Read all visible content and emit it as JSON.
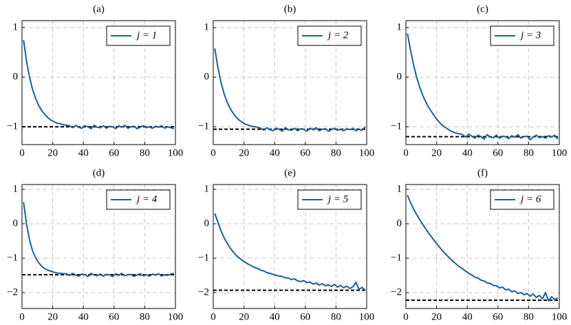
{
  "chart_data": [
    {
      "type": "line",
      "title": "(a)",
      "x": [
        1,
        3,
        5,
        7,
        9,
        11,
        13,
        15,
        17,
        19,
        21,
        23,
        25,
        27,
        29,
        31,
        33,
        35,
        37,
        39,
        41,
        43,
        45,
        47,
        49,
        51,
        53,
        55,
        57,
        59,
        61,
        63,
        65,
        67,
        69,
        71,
        73,
        75,
        77,
        79,
        81,
        83,
        85,
        87,
        89,
        91,
        93,
        95,
        97,
        99
      ],
      "series": [
        {
          "name": "j = 1",
          "color": "#1a5e9a",
          "values": [
            0.75,
            0.31,
            -0.01,
            -0.26,
            -0.44,
            -0.58,
            -0.68,
            -0.76,
            -0.82,
            -0.87,
            -0.9,
            -0.93,
            -0.94,
            -0.96,
            -0.97,
            -0.98,
            -1.02,
            -0.97,
            -1.01,
            -1.03,
            -0.98,
            -1.0,
            -1.04,
            -0.97,
            -1.01,
            -1.02,
            -0.98,
            -1.03,
            -0.99,
            -1.0,
            -1.04,
            -0.98,
            -1.01,
            -0.97,
            -1.03,
            -1.0,
            -0.99,
            -1.04,
            -1.01,
            -0.98,
            -1.02,
            -1.0,
            -1.03,
            -0.99,
            -1.01,
            -0.98,
            -1.03,
            -1.0,
            -1.02,
            -1.04
          ]
        }
      ],
      "hline": -1.0,
      "xlim": [
        0,
        100
      ],
      "ylim": [
        -1.36,
        1.14
      ],
      "xticks": [
        0,
        20,
        40,
        60,
        80,
        100
      ],
      "yticks": [
        {
          "value": -1,
          "label": "−1"
        },
        0,
        1
      ],
      "grid": true,
      "legend": "upper right"
    },
    {
      "type": "line",
      "title": "(b)",
      "x": [
        1,
        3,
        5,
        7,
        9,
        11,
        13,
        15,
        17,
        19,
        21,
        23,
        25,
        27,
        29,
        31,
        33,
        35,
        37,
        39,
        41,
        43,
        45,
        47,
        49,
        51,
        53,
        55,
        57,
        59,
        61,
        63,
        65,
        67,
        69,
        71,
        73,
        75,
        77,
        79,
        81,
        83,
        85,
        87,
        89,
        91,
        93,
        95,
        97,
        99
      ],
      "series": [
        {
          "name": "j = 2",
          "color": "#1a5e9a",
          "values": [
            0.58,
            0.2,
            -0.1,
            -0.33,
            -0.5,
            -0.63,
            -0.73,
            -0.81,
            -0.87,
            -0.91,
            -0.95,
            -0.97,
            -0.99,
            -1.0,
            -1.01,
            -1.03,
            -1.07,
            -1.02,
            -1.06,
            -1.08,
            -1.03,
            -1.05,
            -1.09,
            -1.02,
            -1.06,
            -1.07,
            -1.03,
            -1.08,
            -1.04,
            -1.05,
            -1.09,
            -1.03,
            -1.06,
            -1.02,
            -1.08,
            -1.05,
            -1.04,
            -1.09,
            -1.06,
            -1.03,
            -1.07,
            -1.05,
            -1.08,
            -1.04,
            -1.06,
            -1.03,
            -1.08,
            -1.05,
            -1.07,
            -1.0
          ]
        }
      ],
      "hline": -1.05,
      "xlim": [
        0,
        100
      ],
      "ylim": [
        -1.36,
        1.14
      ],
      "xticks": [
        0,
        20,
        40,
        60,
        80,
        100
      ],
      "yticks": [
        {
          "value": -1,
          "label": "−1"
        },
        0,
        1
      ],
      "grid": true,
      "legend": "upper right"
    },
    {
      "type": "line",
      "title": "(c)",
      "x": [
        1,
        3,
        5,
        7,
        9,
        11,
        13,
        15,
        17,
        19,
        21,
        23,
        25,
        27,
        29,
        31,
        33,
        35,
        37,
        39,
        41,
        43,
        45,
        47,
        49,
        51,
        53,
        55,
        57,
        59,
        61,
        63,
        65,
        67,
        69,
        71,
        73,
        75,
        77,
        79,
        81,
        83,
        85,
        87,
        89,
        91,
        93,
        95,
        97,
        99
      ],
      "series": [
        {
          "name": "j = 3",
          "color": "#1a5e9a",
          "values": [
            0.88,
            0.55,
            0.25,
            0.0,
            -0.2,
            -0.37,
            -0.5,
            -0.62,
            -0.71,
            -0.8,
            -0.88,
            -0.95,
            -1.0,
            -1.04,
            -1.08,
            -1.11,
            -1.13,
            -1.14,
            -1.16,
            -1.21,
            -1.15,
            -1.19,
            -1.23,
            -1.17,
            -1.2,
            -1.25,
            -1.16,
            -1.21,
            -1.22,
            -1.17,
            -1.23,
            -1.19,
            -1.2,
            -1.24,
            -1.18,
            -1.21,
            -1.16,
            -1.23,
            -1.2,
            -1.19,
            -1.26,
            -1.21,
            -1.17,
            -1.22,
            -1.2,
            -1.23,
            -1.18,
            -1.21,
            -1.17,
            -1.25
          ]
        }
      ],
      "hline": -1.2,
      "xlim": [
        0,
        100
      ],
      "ylim": [
        -1.36,
        1.14
      ],
      "xticks": [
        0,
        20,
        40,
        60,
        80,
        100
      ],
      "yticks": [
        {
          "value": -1,
          "label": "−1"
        },
        0,
        1
      ],
      "grid": true,
      "legend": "upper right"
    },
    {
      "type": "line",
      "title": "(d)",
      "x": [
        1,
        3,
        5,
        7,
        9,
        11,
        13,
        15,
        17,
        19,
        21,
        23,
        25,
        27,
        29,
        31,
        33,
        35,
        37,
        39,
        41,
        43,
        45,
        47,
        49,
        51,
        53,
        55,
        57,
        59,
        61,
        63,
        65,
        67,
        69,
        71,
        73,
        75,
        77,
        79,
        81,
        83,
        85,
        87,
        89,
        91,
        93,
        95,
        97,
        99
      ],
      "series": [
        {
          "name": "j = 4",
          "color": "#1a5e9a",
          "values": [
            0.63,
            -0.02,
            -0.49,
            -0.8,
            -1.0,
            -1.14,
            -1.24,
            -1.31,
            -1.35,
            -1.38,
            -1.41,
            -1.43,
            -1.44,
            -1.45,
            -1.45,
            -1.5,
            -1.44,
            -1.49,
            -1.52,
            -1.46,
            -1.48,
            -1.53,
            -1.44,
            -1.49,
            -1.51,
            -1.46,
            -1.52,
            -1.47,
            -1.48,
            -1.53,
            -1.45,
            -1.5,
            -1.44,
            -1.51,
            -1.48,
            -1.47,
            -1.53,
            -1.49,
            -1.45,
            -1.51,
            -1.48,
            -1.52,
            -1.46,
            -1.49,
            -1.45,
            -1.52,
            -1.48,
            -1.5,
            -1.46,
            -1.44
          ]
        }
      ],
      "hline": -1.48,
      "xlim": [
        0,
        100
      ],
      "ylim": [
        -2.46,
        1.14
      ],
      "xticks": [
        0,
        20,
        40,
        60,
        80,
        100
      ],
      "yticks": [
        {
          "value": -2,
          "label": "−2"
        },
        {
          "value": -1,
          "label": "−1"
        },
        0,
        1
      ],
      "grid": true,
      "legend": "upper right"
    },
    {
      "type": "line",
      "title": "(e)",
      "x": [
        1,
        3,
        5,
        7,
        9,
        11,
        13,
        15,
        17,
        19,
        21,
        23,
        25,
        27,
        29,
        31,
        33,
        35,
        37,
        39,
        41,
        43,
        45,
        47,
        49,
        51,
        53,
        55,
        57,
        59,
        61,
        63,
        65,
        67,
        69,
        71,
        73,
        75,
        77,
        79,
        81,
        83,
        85,
        87,
        89,
        91,
        93,
        95,
        97,
        99
      ],
      "series": [
        {
          "name": "j = 5",
          "color": "#1a5e9a",
          "values": [
            0.3,
            0.05,
            -0.2,
            -0.4,
            -0.56,
            -0.7,
            -0.82,
            -0.92,
            -1.0,
            -1.07,
            -1.12,
            -1.18,
            -1.22,
            -1.27,
            -1.3,
            -1.35,
            -1.37,
            -1.42,
            -1.44,
            -1.47,
            -1.5,
            -1.52,
            -1.53,
            -1.57,
            -1.58,
            -1.62,
            -1.6,
            -1.66,
            -1.68,
            -1.65,
            -1.71,
            -1.69,
            -1.75,
            -1.72,
            -1.78,
            -1.74,
            -1.8,
            -1.77,
            -1.82,
            -1.76,
            -1.84,
            -1.79,
            -1.86,
            -1.81,
            -1.88,
            -1.83,
            -1.7,
            -1.9,
            -1.85,
            -1.92
          ]
        }
      ],
      "hline": -1.93,
      "xlim": [
        0,
        100
      ],
      "ylim": [
        -2.46,
        1.14
      ],
      "xticks": [
        0,
        20,
        40,
        60,
        80,
        100
      ],
      "yticks": [
        {
          "value": -2,
          "label": "−2"
        },
        {
          "value": -1,
          "label": "−1"
        },
        0,
        1
      ],
      "grid": true,
      "legend": "upper right"
    },
    {
      "type": "line",
      "title": "(f)",
      "x": [
        1,
        3,
        5,
        7,
        9,
        11,
        13,
        15,
        17,
        19,
        21,
        23,
        25,
        27,
        29,
        31,
        33,
        35,
        37,
        39,
        41,
        43,
        45,
        47,
        49,
        51,
        53,
        55,
        57,
        59,
        61,
        63,
        65,
        67,
        69,
        71,
        73,
        75,
        77,
        79,
        81,
        83,
        85,
        87,
        89,
        91,
        93,
        95,
        97,
        99
      ],
      "series": [
        {
          "name": "j = 6",
          "color": "#1a5e9a",
          "values": [
            0.83,
            0.62,
            0.43,
            0.27,
            0.12,
            -0.02,
            -0.15,
            -0.28,
            -0.4,
            -0.52,
            -0.63,
            -0.74,
            -0.84,
            -0.93,
            -1.02,
            -1.1,
            -1.18,
            -1.25,
            -1.31,
            -1.38,
            -1.44,
            -1.49,
            -1.55,
            -1.58,
            -1.64,
            -1.66,
            -1.72,
            -1.73,
            -1.79,
            -1.8,
            -1.86,
            -1.84,
            -1.92,
            -1.9,
            -1.97,
            -1.95,
            -2.02,
            -2.0,
            -2.06,
            -2.03,
            -2.1,
            -2.04,
            -2.14,
            -2.08,
            -2.18,
            -2.0,
            -2.24,
            -2.12,
            -2.2,
            -2.15
          ]
        }
      ],
      "hline": -2.22,
      "xlim": [
        0,
        100
      ],
      "ylim": [
        -2.46,
        1.14
      ],
      "xticks": [
        0,
        20,
        40,
        60,
        80,
        100
      ],
      "yticks": [
        {
          "value": -2,
          "label": "−2"
        },
        {
          "value": -1,
          "label": "−1"
        },
        0,
        1
      ],
      "grid": true,
      "legend": "upper right"
    }
  ]
}
